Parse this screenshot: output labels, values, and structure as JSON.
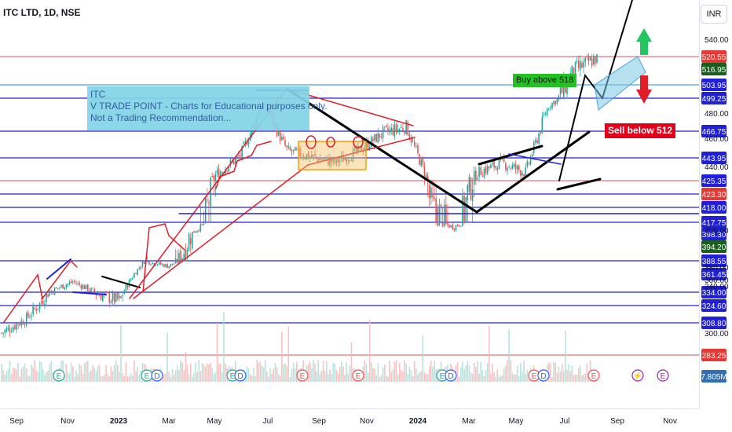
{
  "header": {
    "title": "ITC LTD, 1D, NSE",
    "currency": "INR"
  },
  "note": {
    "lines": [
      "ITC",
      "V TRADE POINT - Charts for Educational purposes only.",
      "Not a Trading Recommendation..."
    ]
  },
  "labels": {
    "buy": "Buy above 518",
    "sell": "Sell below 512"
  },
  "colors": {
    "up": "#26a69a",
    "down": "#ef5350",
    "level_blue": "#2020d6",
    "level_red": "#e57373",
    "trend": "#000000",
    "annot_red": "#e11d2a",
    "channel": "#7ec8e3",
    "arrow_up": "#22c55e",
    "arrow_down": "#e11d2a"
  },
  "chart_data": {
    "type": "candlestick",
    "title": "ITC LTD, 1D, NSE",
    "y_unit": "INR",
    "x_ticks": [
      "Sep",
      "Nov",
      "2023",
      "Mar",
      "May",
      "Jul",
      "Sep",
      "Nov",
      "2024",
      "Mar",
      "May",
      "Jul",
      "Sep",
      "Nov"
    ],
    "y_ticks": [
      540,
      480,
      460,
      440,
      400,
      380,
      360,
      340,
      300
    ],
    "price_levels": [
      {
        "value": 520.55,
        "label": "520.55",
        "bg": "#e53935",
        "fg": "#ffffff",
        "line": "#e57373"
      },
      {
        "value": 516.95,
        "label": "516.95",
        "bg": "#1b5e20",
        "fg": "#ffffff",
        "line": null
      },
      {
        "value": 503.95,
        "label": "503.95",
        "bg": "#2020d6",
        "fg": "#ffffff",
        "line": "#4aa3df"
      },
      {
        "value": 499.25,
        "label": "499.25",
        "bg": "#2020d6",
        "fg": "#ffffff",
        "line": "#2020d6"
      },
      {
        "value": 466.75,
        "label": "466.75",
        "bg": "#2020d6",
        "fg": "#ffffff",
        "line": "#2020d6"
      },
      {
        "value": 443.95,
        "label": "443.95",
        "bg": "#2020d6",
        "fg": "#ffffff",
        "line": "#2020d6"
      },
      {
        "value": 425.35,
        "label": "425.35",
        "bg": "#2020d6",
        "fg": "#ffffff",
        "line": "#e57373"
      },
      {
        "value": 423.3,
        "label": "423.30",
        "bg": "#e53935",
        "fg": "#ffffff",
        "line": "#2020d6"
      },
      {
        "value": 418.0,
        "label": "418.00",
        "bg": "#2020d6",
        "fg": "#ffffff",
        "line": "#2020d6"
      },
      {
        "value": 417.75,
        "label": "417.75",
        "bg": "#2020d6",
        "fg": "#ffffff",
        "line": "#2020d6"
      },
      {
        "value": 398.3,
        "label": "398.30",
        "bg": "#2020d6",
        "fg": "#ffffff",
        "line": null
      },
      {
        "value": 394.2,
        "label": "394.20",
        "bg": "#1b5e20",
        "fg": "#ffffff",
        "line": null
      },
      {
        "value": 388.55,
        "label": "388.55",
        "bg": "#2020d6",
        "fg": "#ffffff",
        "line": "#2020d6"
      },
      {
        "value": 361.45,
        "label": "361.45",
        "bg": "#2020d6",
        "fg": "#ffffff",
        "line": null
      },
      {
        "value": 334.0,
        "label": "334.00",
        "bg": "#2020d6",
        "fg": "#ffffff",
        "line": "#2020d6"
      },
      {
        "value": 324.6,
        "label": "324.60",
        "bg": "#2020d6",
        "fg": "#ffffff",
        "line": "#2020d6"
      },
      {
        "value": 308.8,
        "label": "308.80",
        "bg": "#2020d6",
        "fg": "#ffffff",
        "line": "#2020d6"
      },
      {
        "value": 283.25,
        "label": "283.25",
        "bg": "#e53935",
        "fg": "#ffffff",
        "line": "#e57373"
      }
    ],
    "volume_label": "7.805M",
    "price_path": [
      [
        "Aug 2022",
        300
      ],
      [
        "Sep 2022",
        312
      ],
      [
        "Oct 2022",
        335
      ],
      [
        "Nov 2022",
        350
      ],
      [
        "Dec 2022",
        333
      ],
      [
        "Jan 2023",
        328
      ],
      [
        "Feb 2023",
        388
      ],
      [
        "Mar 2023",
        378
      ],
      [
        "Apr 2023",
        400
      ],
      [
        "May 2023",
        430
      ],
      [
        "Jun 2023",
        445
      ],
      [
        "Jul 2023",
        490
      ],
      [
        "Aug 2023",
        450
      ],
      [
        "Sep 2023",
        445
      ],
      [
        "Oct 2023",
        440
      ],
      [
        "Nov 2023",
        450
      ],
      [
        "Dec 2023",
        465
      ],
      [
        "Jan 2024",
        470
      ],
      [
        "Feb 2024",
        420
      ],
      [
        "Mar 2024",
        410
      ],
      [
        "Apr 2024",
        432
      ],
      [
        "May 2024",
        440
      ],
      [
        "Jun 2024",
        432
      ],
      [
        "Jul 2024",
        490
      ],
      [
        "Aug 2024",
        512
      ],
      [
        "Sep 2024",
        520
      ]
    ]
  }
}
